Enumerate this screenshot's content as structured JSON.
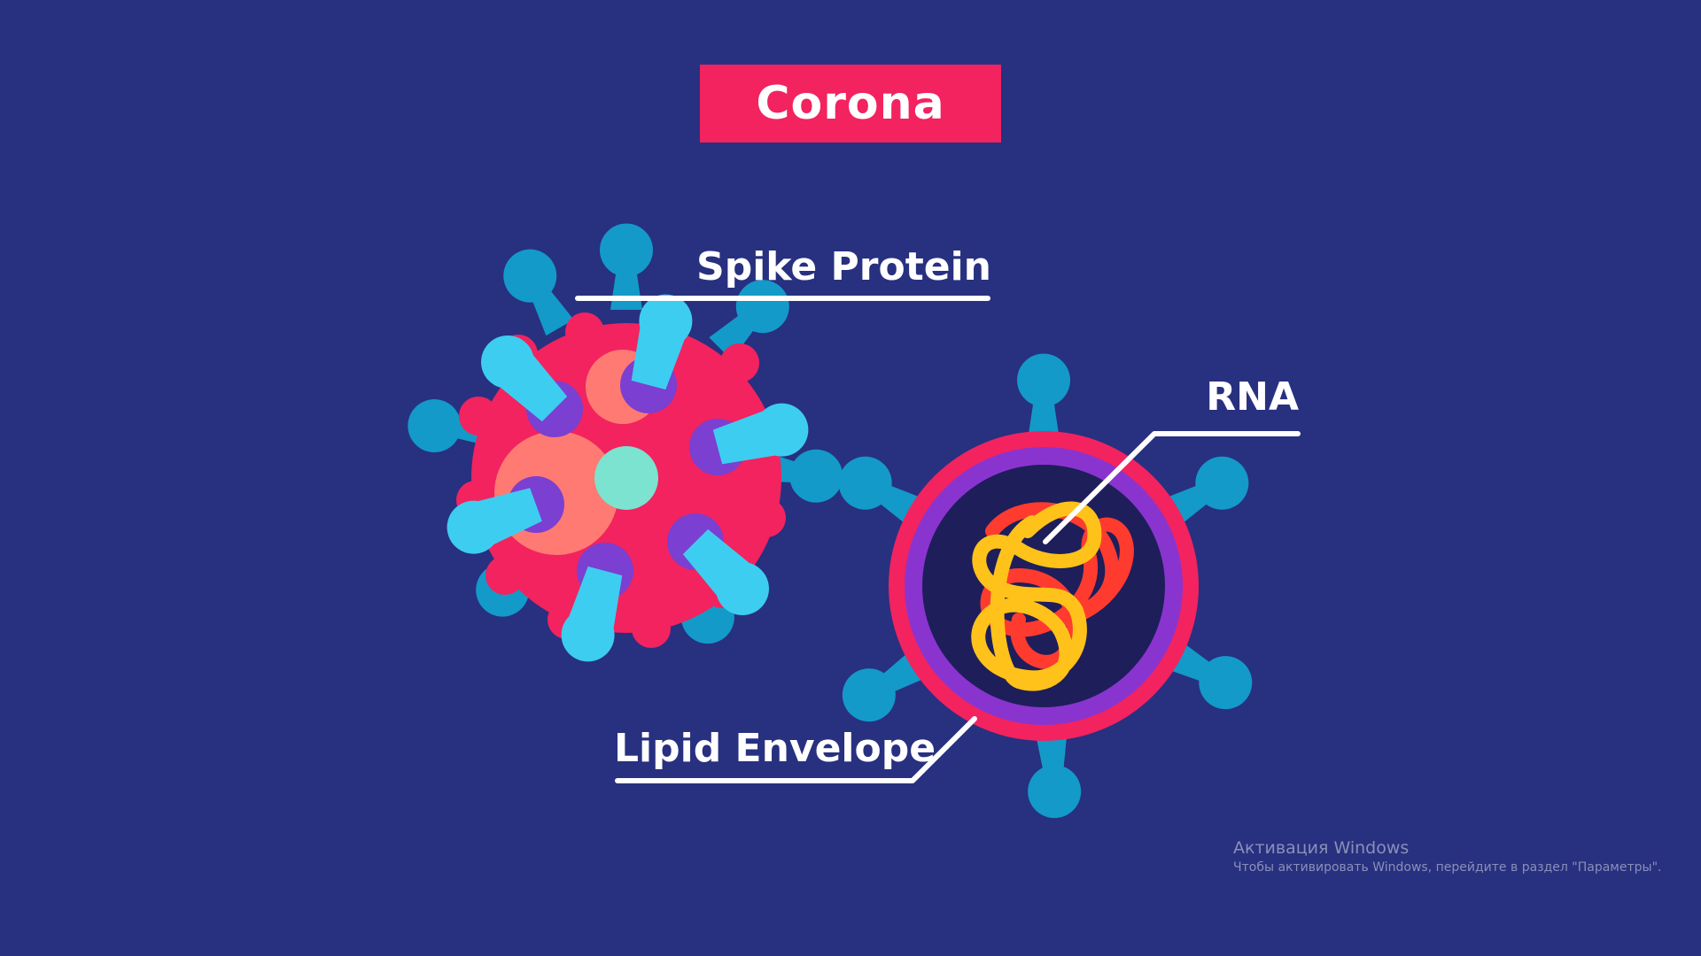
{
  "title": "Corona",
  "labels": {
    "spike_protein": "Spike Protein",
    "rna": "RNA",
    "lipid_envelope": "Lipid Envelope"
  },
  "colors": {
    "background": "#283080",
    "title_box": "#f2235f",
    "virus_body": "#f2235f",
    "spike_light": "#3dcdf0",
    "spike_dark": "#139ac8",
    "spike_ring": "#7b3fd1",
    "envelope_ring": "#8a34d0",
    "core": "#1e1e5a",
    "rna_red": "#ff3b2f",
    "rna_yellow": "#ffc21a",
    "center_dot": "#7be3cf",
    "patch": "#ff7a72"
  },
  "watermark": {
    "title": "Активация Windows",
    "subtitle": "Чтобы активировать Windows, перейдите в раздел \"Параметры\"."
  }
}
